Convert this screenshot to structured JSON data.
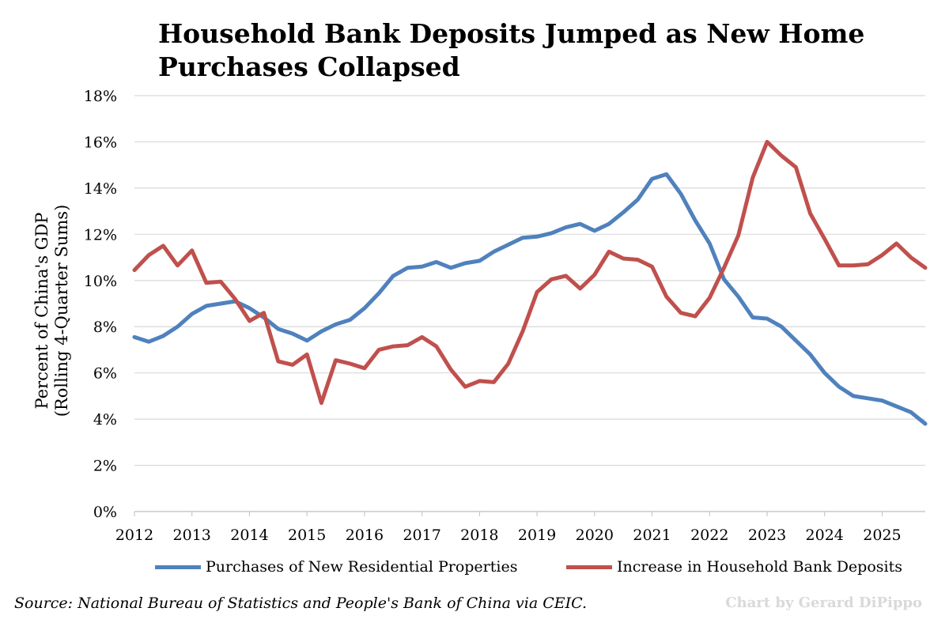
{
  "chart_data": {
    "type": "line",
    "title": "Household Bank Deposits Jumped as New Home Purchases Collapsed",
    "ylabel_line1": "Percent of China's GDP",
    "ylabel_line2": "(Rolling 4-Quarter Sums)",
    "xlabel": "",
    "ylim": [
      0,
      18
    ],
    "yticks": [
      "0%",
      "2%",
      "4%",
      "6%",
      "8%",
      "10%",
      "12%",
      "14%",
      "16%",
      "18%"
    ],
    "xlim": [
      2012,
      2025.75
    ],
    "xticks": [
      "2012",
      "2013",
      "2014",
      "2015",
      "2016",
      "2017",
      "2018",
      "2019",
      "2020",
      "2021",
      "2022",
      "2023",
      "2024",
      "2025"
    ],
    "grid": true,
    "legend_position": "bottom",
    "x": [
      2012.0,
      2012.25,
      2012.5,
      2012.75,
      2013.0,
      2013.25,
      2013.5,
      2013.75,
      2014.0,
      2014.25,
      2014.5,
      2014.75,
      2015.0,
      2015.25,
      2015.5,
      2015.75,
      2016.0,
      2016.25,
      2016.5,
      2016.75,
      2017.0,
      2017.25,
      2017.5,
      2017.75,
      2018.0,
      2018.25,
      2018.5,
      2018.75,
      2019.0,
      2019.25,
      2019.5,
      2019.75,
      2020.0,
      2020.25,
      2020.5,
      2020.75,
      2021.0,
      2021.25,
      2021.5,
      2021.75,
      2022.0,
      2022.25,
      2022.5,
      2022.75,
      2023.0,
      2023.25,
      2023.5,
      2023.75,
      2024.0,
      2024.25,
      2024.5,
      2024.75,
      2025.0,
      2025.25,
      2025.5,
      2025.75
    ],
    "series": [
      {
        "name": "Purchases of New Residential Properties",
        "color": "#4f81bd",
        "values": [
          7.55,
          7.35,
          7.6,
          8.0,
          8.55,
          8.9,
          9.0,
          9.1,
          8.8,
          8.4,
          7.9,
          7.7,
          7.4,
          7.8,
          8.1,
          8.3,
          8.8,
          9.45,
          10.2,
          10.55,
          10.6,
          10.8,
          10.55,
          10.75,
          10.85,
          11.25,
          11.55,
          11.85,
          11.9,
          12.05,
          12.3,
          12.45,
          12.15,
          12.45,
          12.95,
          13.5,
          14.4,
          14.6,
          13.75,
          12.6,
          11.6,
          10.05,
          9.3,
          8.4,
          8.35,
          8.0,
          7.4,
          6.8,
          6.0,
          5.4,
          5.0,
          4.9,
          4.8,
          4.55,
          4.3,
          3.8
        ]
      },
      {
        "name": "Increase in Household Bank Deposits",
        "color": "#c0504d",
        "values": [
          10.45,
          11.1,
          11.5,
          10.65,
          11.3,
          9.9,
          9.95,
          9.2,
          8.25,
          8.6,
          6.5,
          6.35,
          6.8,
          4.7,
          6.55,
          6.4,
          6.2,
          7.0,
          7.15,
          7.2,
          7.55,
          7.15,
          6.15,
          5.4,
          5.65,
          5.6,
          6.4,
          7.8,
          9.5,
          10.05,
          10.2,
          9.65,
          10.25,
          11.25,
          10.95,
          10.9,
          10.6,
          9.3,
          8.6,
          8.45,
          9.25,
          10.55,
          11.95,
          14.45,
          16.0,
          15.4,
          14.9,
          12.9,
          11.8,
          10.65,
          10.65,
          10.7,
          11.1,
          11.6,
          11.0,
          10.55
        ]
      }
    ]
  },
  "source_text": "Source: National Bureau of Statistics and People's Bank of China via CEIC.",
  "credit_text": "Chart by Gerard DiPippo"
}
